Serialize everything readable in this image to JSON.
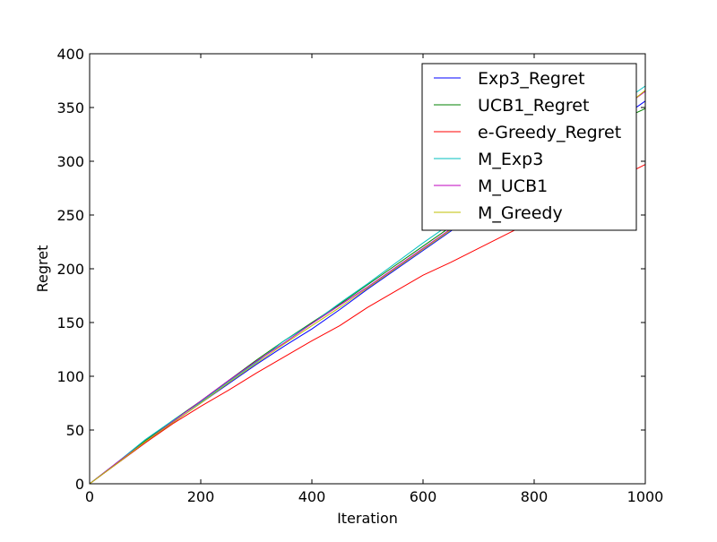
{
  "chart_data": {
    "type": "line",
    "title": "",
    "xlabel": "Iteration",
    "ylabel": "Regret",
    "xlim": [
      0,
      1000
    ],
    "ylim": [
      0,
      400
    ],
    "xticks": [
      0,
      200,
      400,
      600,
      800,
      1000
    ],
    "yticks": [
      0,
      50,
      100,
      150,
      200,
      250,
      300,
      350,
      400
    ],
    "grid": false,
    "legend_position": "top-right",
    "series": [
      {
        "name": "Exp3_Regret",
        "color": "#0000ff",
        "x": [
          0,
          50,
          100,
          150,
          200,
          250,
          300,
          350,
          400,
          450,
          500,
          550,
          600,
          650,
          700,
          750,
          800,
          850,
          900,
          950,
          1000
        ],
        "y": [
          0,
          19,
          38,
          57,
          75,
          93,
          111,
          128,
          144,
          162,
          181,
          199,
          217,
          235,
          253,
          271,
          289,
          305,
          322,
          338,
          356
        ]
      },
      {
        "name": "UCB1_Regret",
        "color": "#008000",
        "x": [
          0,
          50,
          100,
          150,
          200,
          250,
          300,
          350,
          400,
          450,
          500,
          550,
          600,
          650,
          700,
          750,
          800,
          850,
          900,
          950,
          1000
        ],
        "y": [
          0,
          20,
          40,
          59,
          77,
          96,
          115,
          133,
          150,
          167,
          185,
          203,
          221,
          239,
          257,
          275,
          293,
          309,
          324,
          337,
          349
        ]
      },
      {
        "name": "e-Greedy_Regret",
        "color": "#ff0000",
        "x": [
          0,
          50,
          100,
          150,
          200,
          250,
          300,
          350,
          400,
          450,
          500,
          550,
          600,
          650,
          700,
          750,
          800,
          850,
          900,
          950,
          1000
        ],
        "y": [
          0,
          19,
          38,
          56,
          72,
          87,
          103,
          118,
          133,
          147,
          164,
          179,
          194,
          206,
          219,
          232,
          245,
          258,
          271,
          284,
          297
        ]
      },
      {
        "name": "M_Exp3",
        "color": "#00bfbf",
        "x": [
          0,
          50,
          100,
          150,
          200,
          250,
          300,
          350,
          400,
          450,
          500,
          550,
          600,
          650,
          700,
          750,
          800,
          850,
          900,
          950,
          1000
        ],
        "y": [
          0,
          20,
          41,
          59,
          76,
          95,
          113,
          133,
          149,
          168,
          186,
          205,
          224,
          242,
          260,
          279,
          297,
          316,
          334,
          352,
          370
        ]
      },
      {
        "name": "M_UCB1",
        "color": "#bf00bf",
        "x": [
          0,
          50,
          100,
          150,
          200,
          250,
          300,
          350,
          400,
          450,
          500,
          550,
          600,
          650,
          700,
          750,
          800,
          850,
          900,
          950,
          1000
        ],
        "y": [
          0,
          20,
          39,
          58,
          77,
          96,
          114,
          131,
          149,
          166,
          183,
          201,
          219,
          237,
          255,
          273,
          291,
          309,
          327,
          346,
          365
        ]
      },
      {
        "name": "M_Greedy",
        "color": "#bfbf00",
        "x": [
          0,
          50,
          100,
          150,
          200,
          250,
          300,
          350,
          400,
          450,
          500,
          550,
          600,
          650,
          700,
          750,
          800,
          850,
          900,
          950,
          1000
        ],
        "y": [
          0,
          19,
          39,
          57,
          75,
          94,
          112,
          130,
          147,
          164,
          182,
          200,
          218,
          236,
          254,
          272,
          290,
          308,
          326,
          345,
          366
        ]
      }
    ]
  }
}
